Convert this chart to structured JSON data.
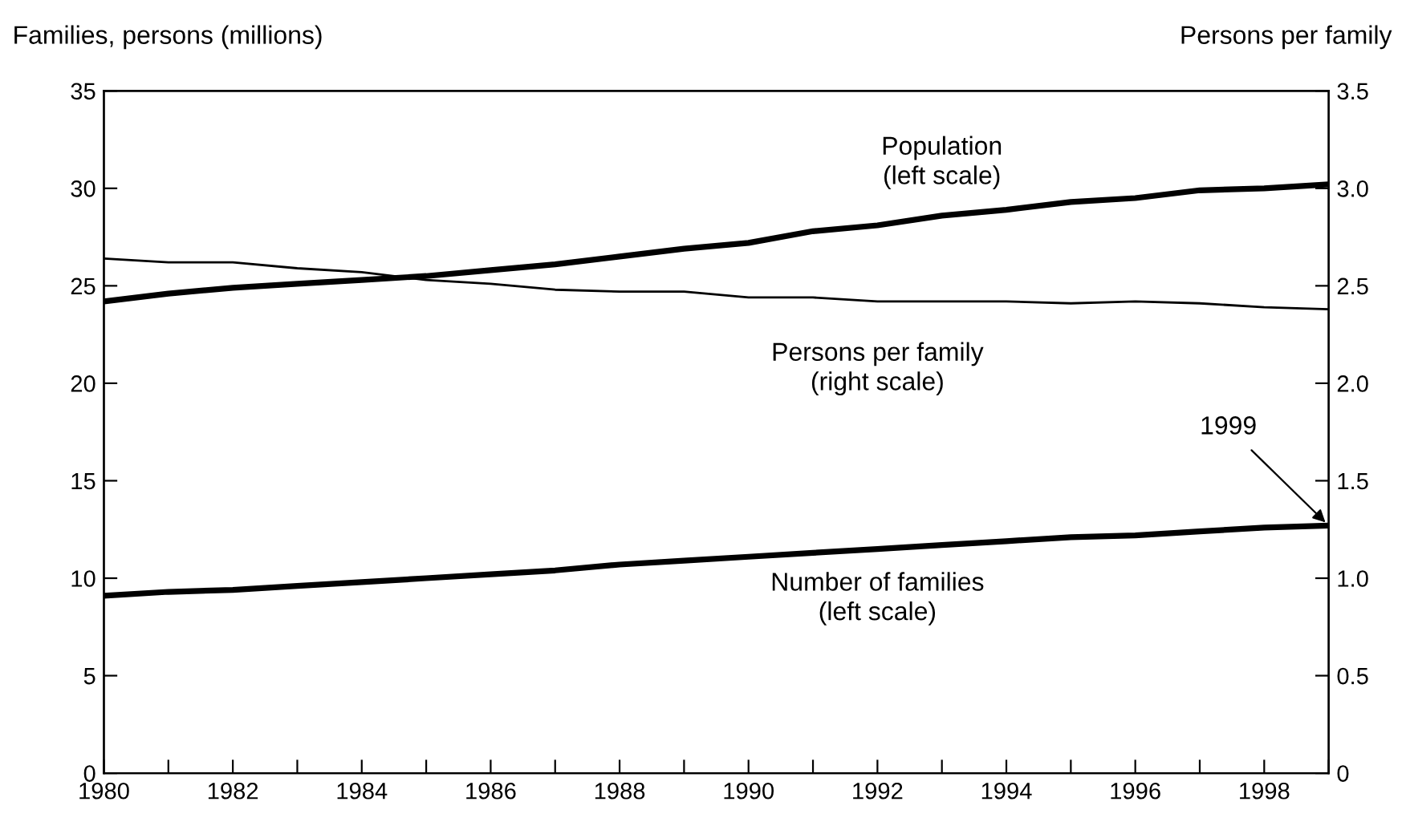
{
  "chart_data": {
    "type": "line",
    "xlabel": null,
    "ylabel": "Families, persons (millions)",
    "y2label": "Persons per family",
    "x": [
      1980,
      1981,
      1982,
      1983,
      1984,
      1985,
      1986,
      1987,
      1988,
      1989,
      1990,
      1991,
      1992,
      1993,
      1994,
      1995,
      1996,
      1997,
      1998,
      1999
    ],
    "series": [
      {
        "name": "Population (left scale)",
        "color": "#000000",
        "values": [
          24.2,
          24.6,
          24.9,
          25.1,
          25.3,
          25.5,
          25.8,
          26.1,
          26.5,
          26.9,
          27.2,
          27.8,
          28.1,
          28.6,
          28.9,
          29.3,
          29.5,
          29.9,
          30.0,
          30.2
        ]
      },
      {
        "name": "Persons per family (right scale)",
        "color": "#000000",
        "axis": "y2",
        "values": [
          2.64,
          2.62,
          2.62,
          2.59,
          2.57,
          2.53,
          2.51,
          2.48,
          2.47,
          2.47,
          2.44,
          2.44,
          2.42,
          2.42,
          2.42,
          2.41,
          2.42,
          2.41,
          2.39,
          2.38
        ]
      },
      {
        "name": "Number of families (left scale)",
        "color": "#000000",
        "values": [
          9.1,
          9.3,
          9.4,
          9.6,
          9.8,
          10.0,
          10.2,
          10.4,
          10.7,
          10.9,
          11.1,
          11.3,
          11.5,
          11.7,
          11.9,
          12.1,
          12.2,
          12.4,
          12.6,
          12.7
        ]
      }
    ],
    "annotations": [
      {
        "text": "1999",
        "x": 1999,
        "y": 12.7
      }
    ],
    "xlim": [
      1980,
      1999
    ],
    "xticks": [
      1980,
      {
        "value": 1981,
        "label": null
      },
      1982,
      {
        "value": 1983,
        "label": null
      },
      1984,
      {
        "value": 1985,
        "label": null
      },
      1986,
      {
        "value": 1987,
        "label": null
      },
      1988,
      {
        "value": 1989,
        "label": null
      },
      1990,
      {
        "value": 1991,
        "label": null
      },
      1992,
      {
        "value": 1993,
        "label": null
      },
      1994,
      {
        "value": 1995,
        "label": null
      },
      1996,
      {
        "value": 1997,
        "label": null
      },
      1998,
      {
        "value": 1999,
        "label": null
      }
    ],
    "ylim": [
      0,
      35
    ],
    "yticks": [
      0,
      5,
      10,
      15,
      20,
      25,
      30,
      35
    ],
    "y2lim": [
      0,
      3.5
    ],
    "y2ticks": [
      0,
      {
        "value": 0.5,
        "label": "0.5"
      },
      {
        "value": 1,
        "label": "1.0"
      },
      {
        "value": 1.5,
        "label": "1.5"
      },
      {
        "value": 2,
        "label": "2.0"
      },
      {
        "value": 2.5,
        "label": "2.5"
      },
      {
        "value": 3,
        "label": "3.0"
      },
      {
        "value": 3.5,
        "label": "3.5"
      }
    ],
    "grid": false,
    "legend": false
  }
}
